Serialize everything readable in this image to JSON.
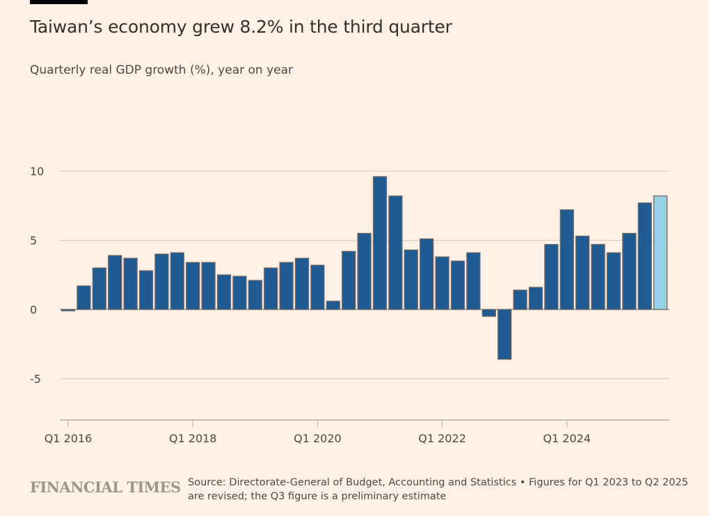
{
  "header": {
    "title": "Taiwan’s economy grew 8.2% in the third quarter",
    "subtitle": "Quarterly real GDP growth (%), year on year"
  },
  "footer": {
    "logo": "FINANCIAL TIMES",
    "source": "Source: Directorate-General of Budget, Accounting and Statistics • Figures for Q1 2023 to Q2 2025 are revised; the Q3 figure is a preliminary estimate"
  },
  "colors": {
    "bar": "#1f5a93",
    "highlight": "#96d2e6",
    "outline": "#6e6a67",
    "grid": "#d6c8bb"
  },
  "chart_data": {
    "type": "bar",
    "title": "Taiwan’s economy grew 8.2% in the third quarter",
    "subtitle": "Quarterly real GDP growth (%), year on year",
    "ylim": [
      -8,
      10
    ],
    "yticks": [
      10,
      5,
      0,
      -5
    ],
    "grid": true,
    "xtick_labels": [
      "Q1 2016",
      "Q1 2018",
      "Q1 2020",
      "Q1 2022",
      "Q1 2024"
    ],
    "categories": [
      "Q1 2016",
      "Q2 2016",
      "Q3 2016",
      "Q4 2016",
      "Q1 2017",
      "Q2 2017",
      "Q3 2017",
      "Q4 2017",
      "Q1 2018",
      "Q2 2018",
      "Q3 2018",
      "Q4 2018",
      "Q1 2019",
      "Q2 2019",
      "Q3 2019",
      "Q4 2019",
      "Q1 2020",
      "Q2 2020",
      "Q3 2020",
      "Q4 2020",
      "Q1 2021",
      "Q2 2021",
      "Q3 2021",
      "Q4 2021",
      "Q1 2022",
      "Q2 2022",
      "Q3 2022",
      "Q4 2022",
      "Q1 2023",
      "Q2 2023",
      "Q3 2023",
      "Q4 2023",
      "Q1 2024",
      "Q2 2024",
      "Q3 2024",
      "Q4 2024",
      "Q1 2025",
      "Q2 2025",
      "Q3 2025"
    ],
    "values": [
      -0.1,
      1.7,
      3.0,
      3.9,
      3.7,
      2.8,
      4.0,
      4.1,
      3.4,
      3.4,
      2.5,
      2.4,
      2.1,
      3.0,
      3.4,
      3.7,
      3.2,
      0.6,
      4.2,
      5.5,
      9.6,
      8.2,
      4.3,
      5.1,
      3.8,
      3.5,
      4.1,
      -0.5,
      -3.6,
      1.4,
      1.6,
      4.7,
      7.2,
      5.3,
      4.7,
      4.1,
      5.5,
      7.7,
      8.2
    ],
    "highlighted": [
      "Q3 2025"
    ]
  }
}
